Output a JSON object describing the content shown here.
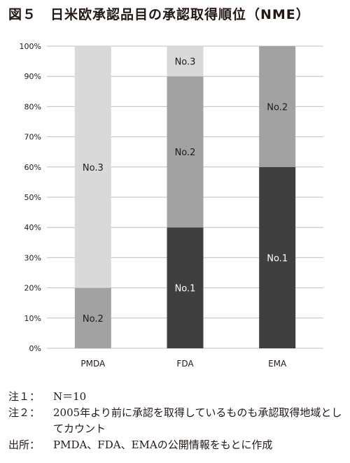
{
  "title": "図５　日米欧承認品目の承認取得順位（NME）",
  "chart_data": {
    "type": "bar",
    "stacked": true,
    "title": "",
    "xlabel": "",
    "ylabel": "",
    "ylim": [
      0,
      100
    ],
    "yticks": [
      "0%",
      "10%",
      "20%",
      "30%",
      "40%",
      "50%",
      "60%",
      "70%",
      "80%",
      "90%",
      "100%"
    ],
    "grid": true,
    "legend": "none",
    "categories": [
      "PMDA",
      "FDA",
      "EMA"
    ],
    "series": [
      {
        "name": "No.1",
        "values": [
          0,
          40,
          60
        ],
        "color": "#3f3f3f",
        "label_color": "#ffffff"
      },
      {
        "name": "No.2",
        "values": [
          20,
          50,
          40
        ],
        "color": "#a2a2a2",
        "label_color": "#231815"
      },
      {
        "name": "No.3",
        "values": [
          80,
          10,
          0
        ],
        "color": "#d9d9d9",
        "label_color": "#231815"
      }
    ]
  },
  "notes": [
    {
      "label": "注１：",
      "text": "N＝10"
    },
    {
      "label": "注２：",
      "text": "2005年より前に承認を取得しているものも承認取得地域としてカウント"
    },
    {
      "label": "出所：",
      "text": "PMDA、FDA、EMAの公開情報をもとに作成"
    }
  ]
}
